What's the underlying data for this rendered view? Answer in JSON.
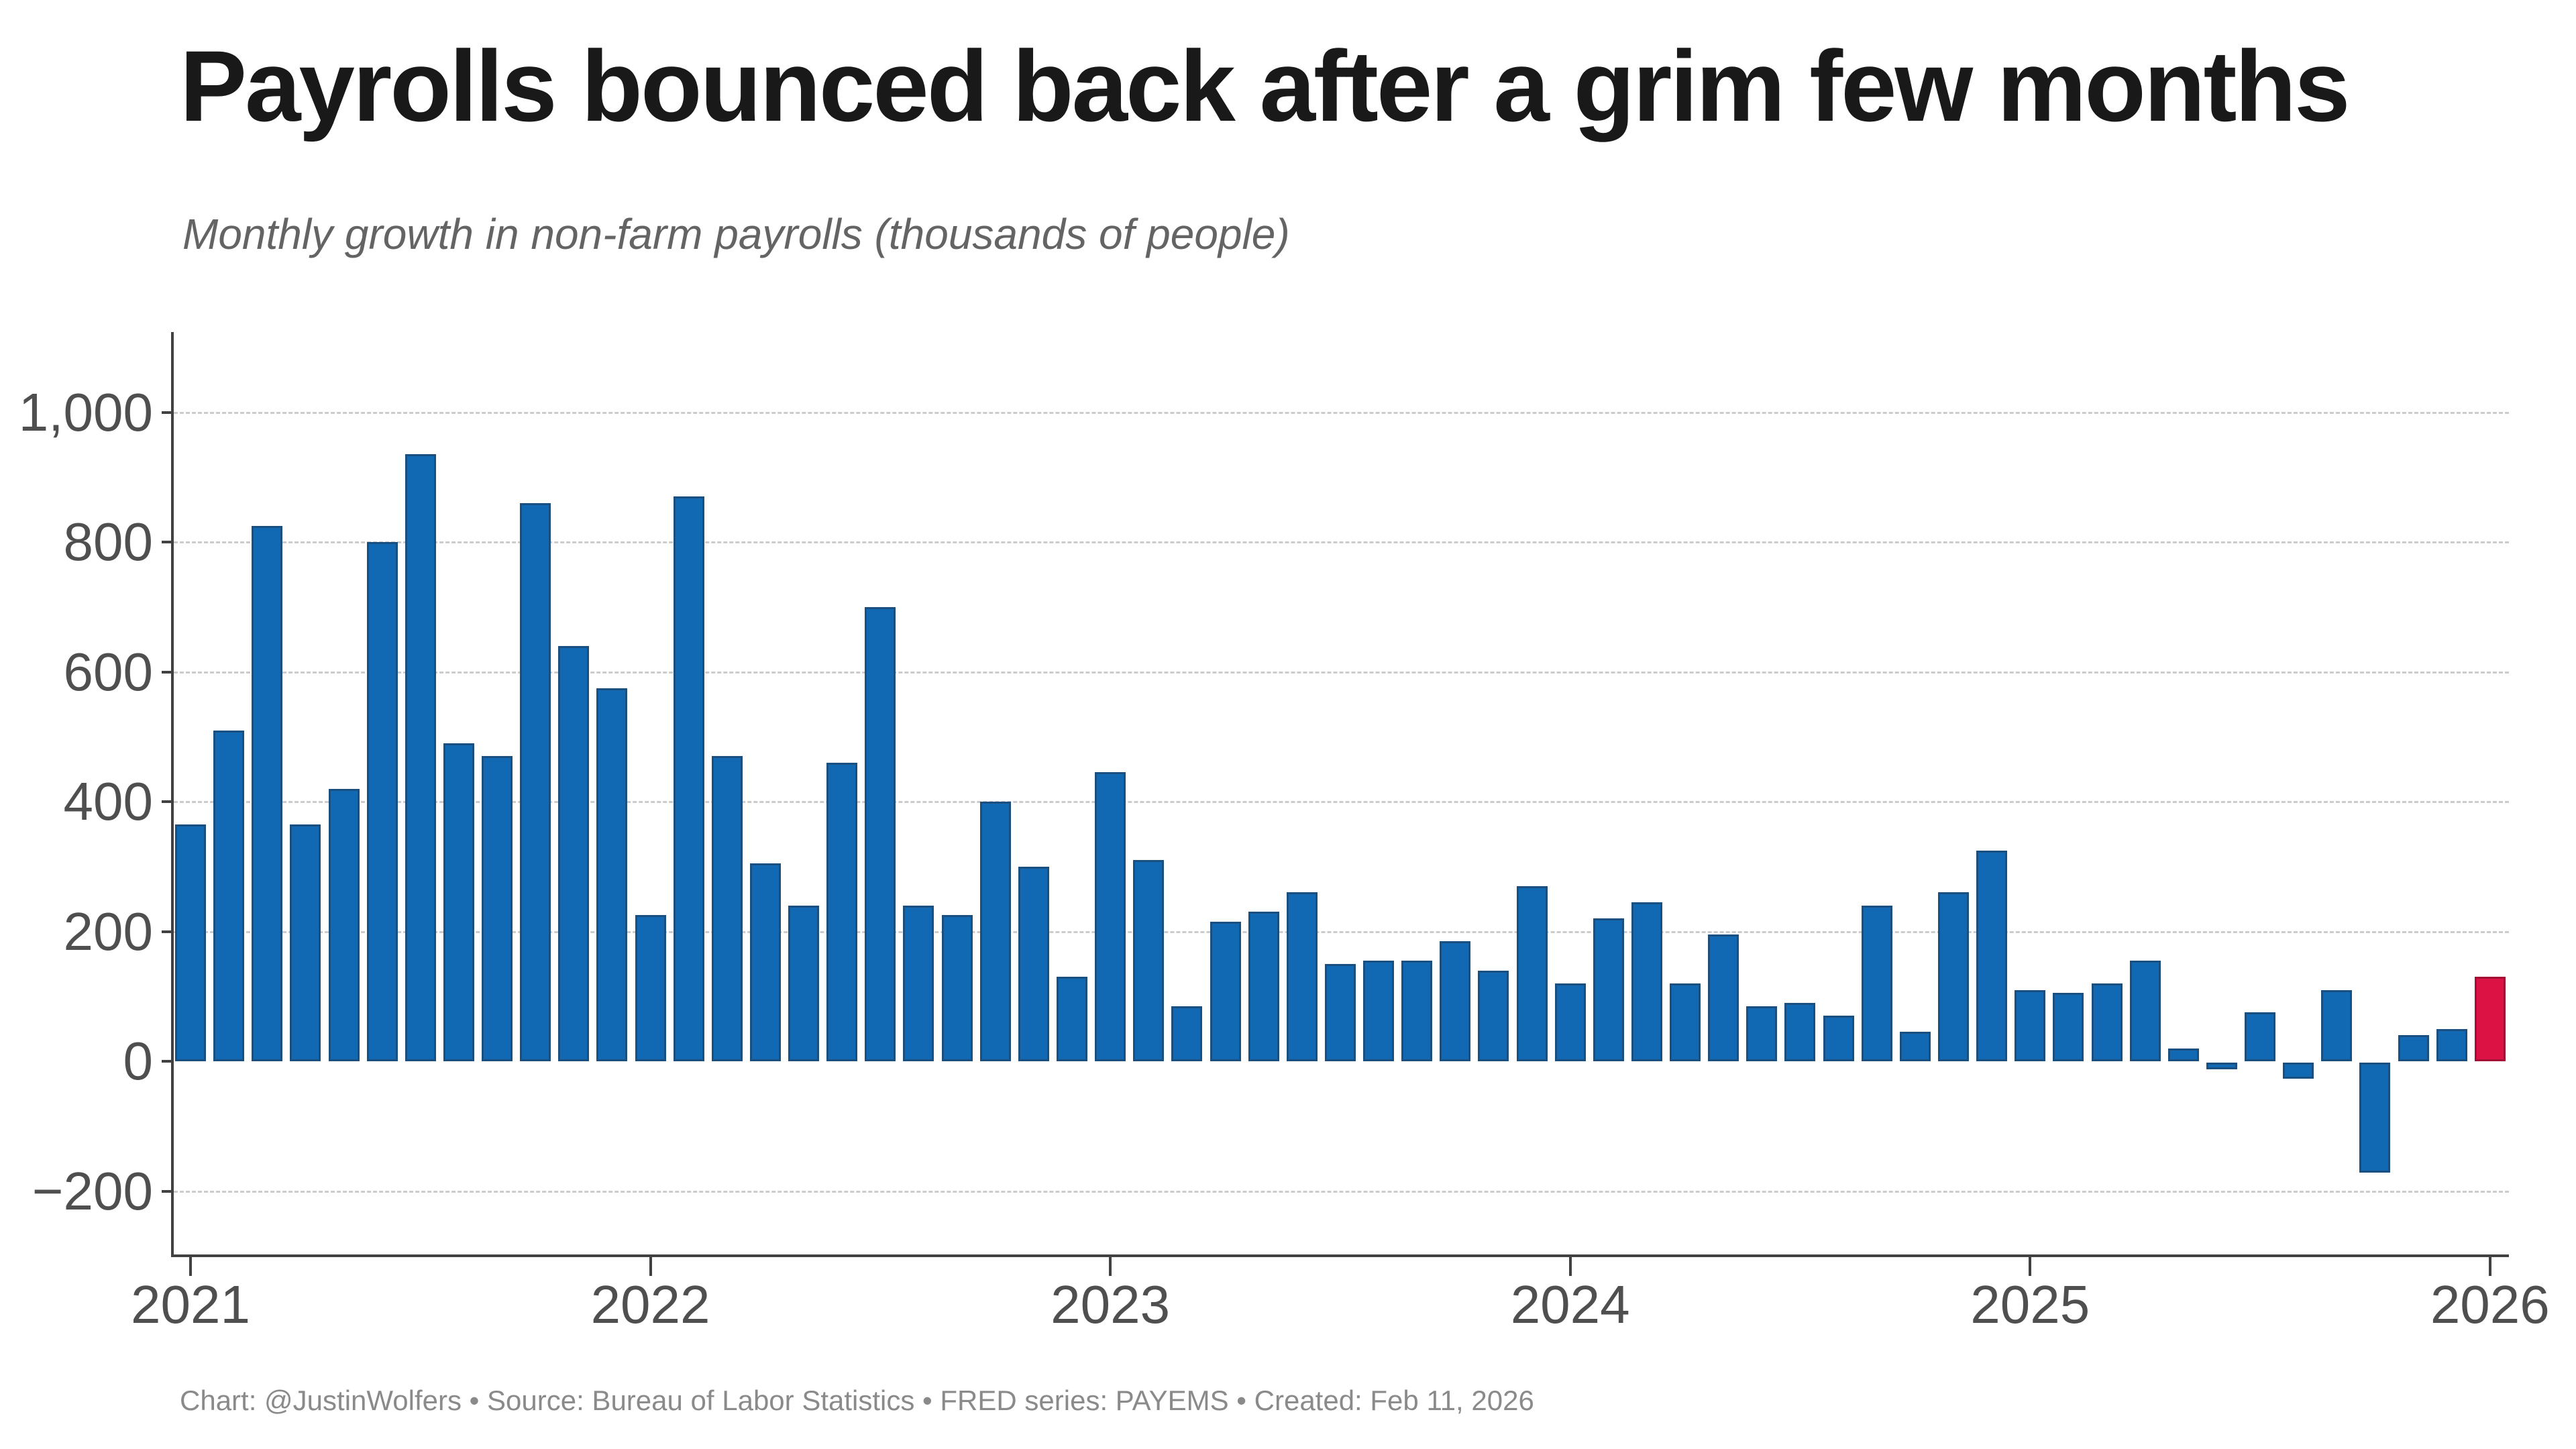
{
  "header": {
    "title": "Payrolls bounced back after a grim few months",
    "subtitle": "Monthly growth in non-farm payrolls (thousands of people)"
  },
  "footer": {
    "note": "Chart: @JustinWolfers • Source: Bureau of Labor Statistics • FRED series: PAYEMS • Created: Feb 11, 2026"
  },
  "colors": {
    "bar": "#1169b4",
    "bar_edge": "#1b4f80",
    "highlight_bar": "#dc1245",
    "highlight_edge": "#a40e35",
    "axis": "#414141",
    "grid": "#cccccc",
    "tick_label": "#4f4f4f",
    "title": "#191919",
    "subtitle": "#646464",
    "footer": "#8a8a8a",
    "background": "#ffffff"
  },
  "chart_data": {
    "type": "bar",
    "title": "Payrolls bounced back after a grim few months",
    "subtitle": "Monthly growth in non-farm payrolls (thousands of people)",
    "unit": "thousands of people",
    "x": [
      "2021-01",
      "2021-02",
      "2021-03",
      "2021-04",
      "2021-05",
      "2021-06",
      "2021-07",
      "2021-08",
      "2021-09",
      "2021-10",
      "2021-11",
      "2021-12",
      "2022-01",
      "2022-02",
      "2022-03",
      "2022-04",
      "2022-05",
      "2022-06",
      "2022-07",
      "2022-08",
      "2022-09",
      "2022-10",
      "2022-11",
      "2022-12",
      "2023-01",
      "2023-02",
      "2023-03",
      "2023-04",
      "2023-05",
      "2023-06",
      "2023-07",
      "2023-08",
      "2023-09",
      "2023-10",
      "2023-11",
      "2023-12",
      "2024-01",
      "2024-02",
      "2024-03",
      "2024-04",
      "2024-05",
      "2024-06",
      "2024-07",
      "2024-08",
      "2024-09",
      "2024-10",
      "2024-11",
      "2024-12",
      "2025-01",
      "2025-02",
      "2025-03",
      "2025-04",
      "2025-05",
      "2025-06",
      "2025-07",
      "2025-08",
      "2025-09",
      "2025-10",
      "2025-11",
      "2025-12",
      "2026-01"
    ],
    "values": [
      365,
      510,
      825,
      365,
      420,
      800,
      935,
      490,
      470,
      860,
      640,
      575,
      225,
      870,
      470,
      305,
      240,
      460,
      700,
      240,
      225,
      400,
      300,
      130,
      445,
      310,
      85,
      215,
      230,
      260,
      150,
      155,
      155,
      185,
      140,
      270,
      120,
      220,
      245,
      120,
      195,
      85,
      90,
      70,
      240,
      45,
      260,
      325,
      110,
      105,
      120,
      155,
      20,
      -10,
      75,
      -25,
      110,
      -170,
      40,
      50,
      130
    ],
    "highlight_index": 60,
    "ylim": [
      -298,
      1098
    ],
    "yticks": [
      -200,
      0,
      200,
      400,
      600,
      800,
      1000
    ],
    "ytick_labels": [
      "−200",
      "0",
      "200",
      "400",
      "600",
      "800",
      "1,000"
    ],
    "xtick_labels": [
      "2021",
      "2022",
      "2023",
      "2024",
      "2025",
      "2026"
    ],
    "grid": "horizontal dashed gridlines at 200-unit intervals, none at 0",
    "legend": "none"
  }
}
